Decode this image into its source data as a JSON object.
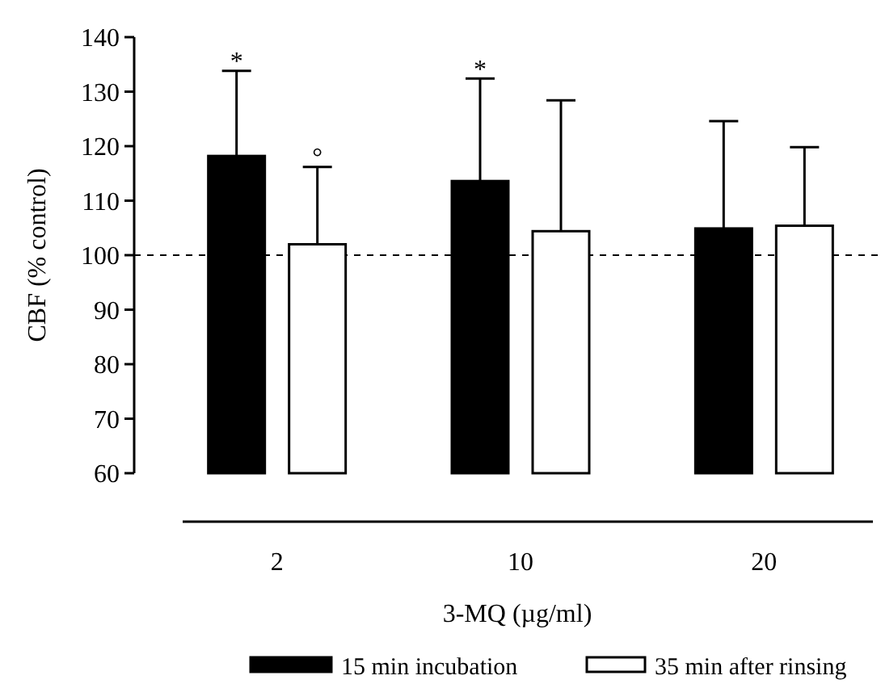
{
  "chart_data": {
    "type": "bar",
    "xlabel": "3-MQ (µg/ml)",
    "ylabel": "CBF (% control)",
    "categories": [
      "2",
      "10",
      "20"
    ],
    "series": [
      {
        "name": "15 min incubation",
        "color": "#000000",
        "values": [
          118.2,
          113.6,
          104.9
        ],
        "errors": [
          [
            118.2,
            133.8
          ],
          [
            113.6,
            132.4
          ],
          [
            104.9,
            124.6
          ]
        ]
      },
      {
        "name": "35 min after rinsing",
        "color": "#ffffff",
        "values": [
          102,
          104.4,
          105.4
        ],
        "errors": [
          [
            102,
            116.2
          ],
          [
            104.4,
            128.4
          ],
          [
            105.4,
            119.8
          ]
        ]
      }
    ],
    "ylim": [
      60,
      140
    ],
    "yticks": [
      60,
      70,
      80,
      90,
      100,
      110,
      120,
      130,
      140
    ],
    "ref_lines": [
      {
        "axis": "y",
        "value": 100,
        "line_style": "dashed",
        "color": "#000000"
      }
    ],
    "annotations": [
      "*",
      "*",
      "°"
    ],
    "legend": "bottom",
    "grid": false
  }
}
